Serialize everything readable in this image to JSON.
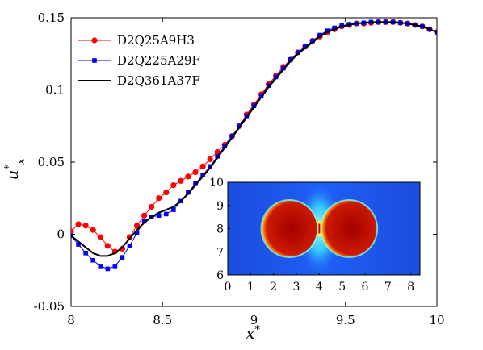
{
  "chart_data": [
    {
      "type": "line",
      "title": "",
      "xlabel": "x*",
      "ylabel": "u*x",
      "xlim": [
        8,
        10
      ],
      "ylim": [
        -0.05,
        0.15
      ],
      "xticks": [
        "8",
        "8.5",
        "9",
        "9.5",
        "10"
      ],
      "yticks": [
        "-0.05",
        "0",
        "0.05",
        "0.1",
        "0.15"
      ],
      "legend_position": "top-left",
      "series": [
        {
          "name": "D2Q25A9H3",
          "color": "#ff0000",
          "marker": "circle",
          "x": [
            8.0,
            8.04,
            8.08,
            8.12,
            8.16,
            8.2,
            8.24,
            8.28,
            8.32,
            8.36,
            8.4,
            8.44,
            8.48,
            8.52,
            8.56,
            8.6,
            8.64,
            8.68,
            8.72,
            8.76,
            8.8,
            8.84,
            8.88,
            8.92,
            8.96,
            9.0,
            9.04,
            9.08,
            9.12,
            9.16,
            9.2,
            9.24,
            9.28,
            9.32,
            9.36,
            9.4,
            9.44,
            9.48,
            9.52,
            9.56,
            9.6,
            9.64,
            9.68,
            9.72,
            9.76,
            9.8,
            9.84,
            9.88,
            9.92,
            9.96,
            10.0
          ],
          "y": [
            0.002,
            0.007,
            0.006,
            0.003,
            -0.002,
            -0.008,
            -0.012,
            -0.01,
            -0.002,
            0.006,
            0.013,
            0.019,
            0.025,
            0.029,
            0.034,
            0.037,
            0.04,
            0.043,
            0.047,
            0.052,
            0.057,
            0.062,
            0.068,
            0.075,
            0.083,
            0.09,
            0.097,
            0.104,
            0.11,
            0.116,
            0.121,
            0.126,
            0.13,
            0.134,
            0.137,
            0.14,
            0.142,
            0.144,
            0.145,
            0.146,
            0.146,
            0.1465,
            0.147,
            0.147,
            0.147,
            0.1465,
            0.146,
            0.145,
            0.144,
            0.142,
            0.14
          ]
        },
        {
          "name": "D2Q225A29F",
          "color": "#0000ff",
          "marker": "square",
          "x": [
            8.0,
            8.04,
            8.08,
            8.12,
            8.16,
            8.2,
            8.24,
            8.28,
            8.32,
            8.36,
            8.4,
            8.44,
            8.48,
            8.52,
            8.56,
            8.6,
            8.64,
            8.68,
            8.72,
            8.76,
            8.8,
            8.84,
            8.88,
            8.92,
            8.96,
            9.0,
            9.04,
            9.08,
            9.12,
            9.16,
            9.2,
            9.24,
            9.28,
            9.32,
            9.36,
            9.4,
            9.44,
            9.48,
            9.52,
            9.56,
            9.6,
            9.64,
            9.68,
            9.72,
            9.76,
            9.8,
            9.84,
            9.88,
            9.92,
            9.96,
            10.0
          ],
          "y": [
            -0.001,
            -0.007,
            -0.013,
            -0.018,
            -0.022,
            -0.024,
            -0.022,
            -0.016,
            -0.008,
            0.001,
            0.009,
            0.012,
            0.013,
            0.014,
            0.017,
            0.023,
            0.029,
            0.035,
            0.041,
            0.047,
            0.054,
            0.061,
            0.068,
            0.075,
            0.082,
            0.089,
            0.096,
            0.103,
            0.109,
            0.115,
            0.121,
            0.126,
            0.13,
            0.134,
            0.138,
            0.141,
            0.143,
            0.1445,
            0.1455,
            0.146,
            0.1465,
            0.147,
            0.147,
            0.147,
            0.147,
            0.1465,
            0.146,
            0.145,
            0.144,
            0.142,
            0.14
          ]
        },
        {
          "name": "D2Q361A37F",
          "color": "#000000",
          "marker": "none",
          "x": [
            8.0,
            8.04,
            8.08,
            8.12,
            8.16,
            8.2,
            8.24,
            8.28,
            8.32,
            8.36,
            8.4,
            8.44,
            8.48,
            8.52,
            8.56,
            8.6,
            8.64,
            8.68,
            8.72,
            8.76,
            8.8,
            8.84,
            8.88,
            8.92,
            8.96,
            9.0,
            9.04,
            9.08,
            9.12,
            9.16,
            9.2,
            9.24,
            9.28,
            9.32,
            9.36,
            9.4,
            9.44,
            9.48,
            9.52,
            9.56,
            9.6,
            9.64,
            9.68,
            9.72,
            9.76,
            9.8,
            9.84,
            9.88,
            9.92,
            9.96,
            10.0
          ],
          "y": [
            -0.001,
            -0.005,
            -0.009,
            -0.013,
            -0.015,
            -0.015,
            -0.013,
            -0.009,
            -0.003,
            0.003,
            0.008,
            0.012,
            0.015,
            0.017,
            0.019,
            0.023,
            0.028,
            0.034,
            0.04,
            0.046,
            0.053,
            0.06,
            0.067,
            0.074,
            0.081,
            0.088,
            0.095,
            0.102,
            0.108,
            0.114,
            0.12,
            0.125,
            0.129,
            0.133,
            0.137,
            0.14,
            0.142,
            0.144,
            0.145,
            0.146,
            0.1465,
            0.147,
            0.147,
            0.147,
            0.147,
            0.1465,
            0.146,
            0.145,
            0.144,
            0.142,
            0.14
          ]
        }
      ]
    },
    {
      "type": "heatmap",
      "title": "",
      "xlim": [
        0,
        8.4
      ],
      "ylim": [
        6,
        10
      ],
      "xticks": [
        "0",
        "1",
        "2",
        "3",
        "4",
        "5",
        "6",
        "7",
        "8"
      ],
      "yticks": [
        "6",
        "7",
        "8",
        "9",
        "10"
      ],
      "colormap": "jet",
      "droplets": [
        {
          "center_x": 2.7,
          "center_y": 8.0,
          "radius": 1.2
        },
        {
          "center_x": 5.3,
          "center_y": 8.0,
          "radius": 1.2
        }
      ]
    }
  ]
}
